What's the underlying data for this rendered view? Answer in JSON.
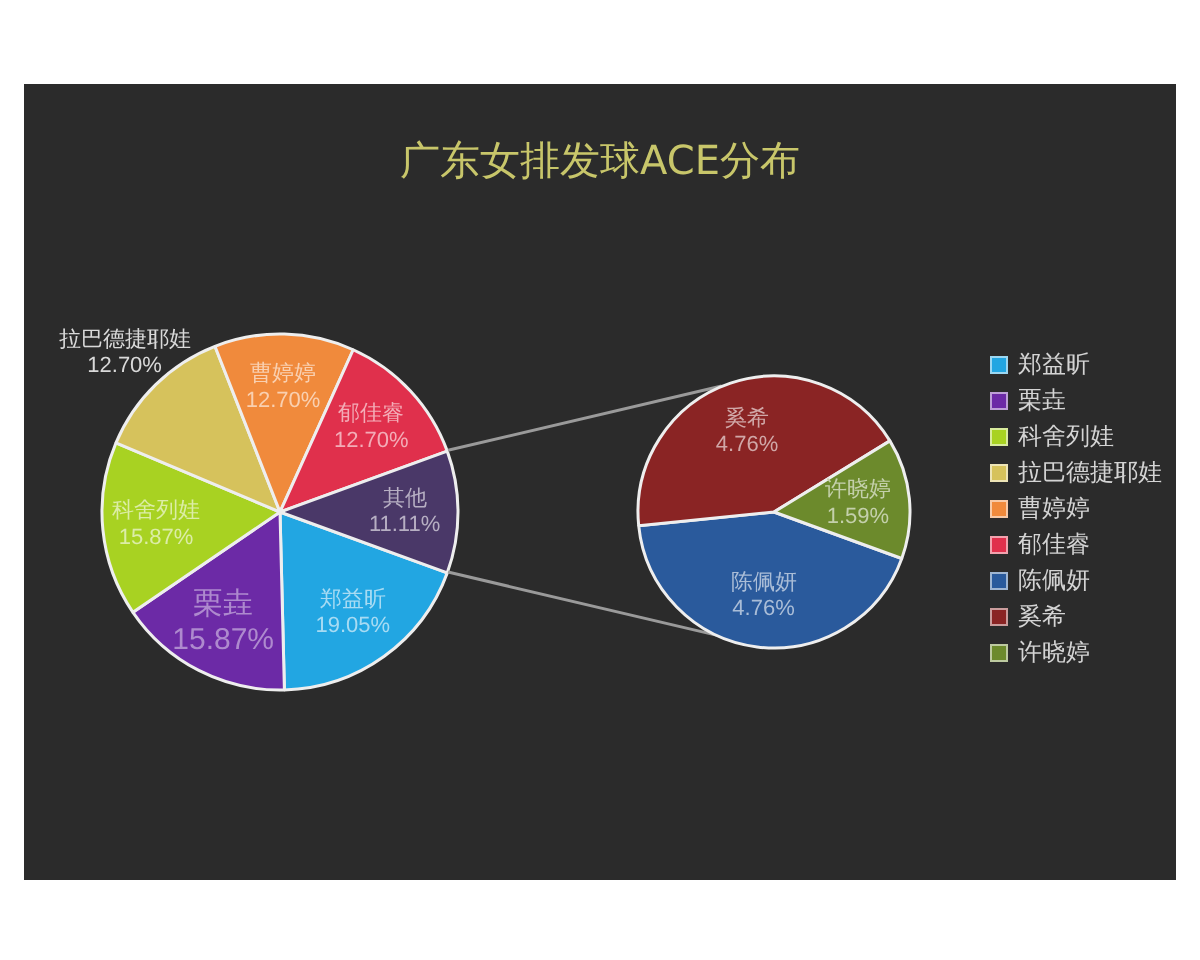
{
  "chart_data": [
    {
      "type": "pie",
      "title": "广东女排发球ACE分布",
      "categories": [
        "郑益昕",
        "栗垚",
        "科舍列娃",
        "拉巴德捷耶娃",
        "曹婷婷",
        "郁佳睿",
        "其他"
      ],
      "values": [
        19.05,
        15.87,
        15.87,
        12.7,
        12.7,
        12.7,
        11.11
      ],
      "colors": [
        "#22a6e2",
        "#6c2aa6",
        "#a8d222",
        "#d6c25c",
        "#f08a3c",
        "#e0304c",
        "#4a3868"
      ],
      "value_labels": [
        "19.05%",
        "15.87%",
        "15.87%",
        "12.70%",
        "12.70%",
        "12.70%",
        "11.11%"
      ],
      "legend": "right"
    },
    {
      "type": "pie",
      "categories": [
        "陈佩妍",
        "奚希",
        "许晓婷"
      ],
      "values": [
        4.76,
        4.76,
        1.59
      ],
      "colors": [
        "#2a5a9c",
        "#8a2424",
        "#6c8a2c"
      ],
      "value_labels": [
        "4.76%",
        "4.76%",
        "1.59%"
      ],
      "legend": "right"
    }
  ]
}
